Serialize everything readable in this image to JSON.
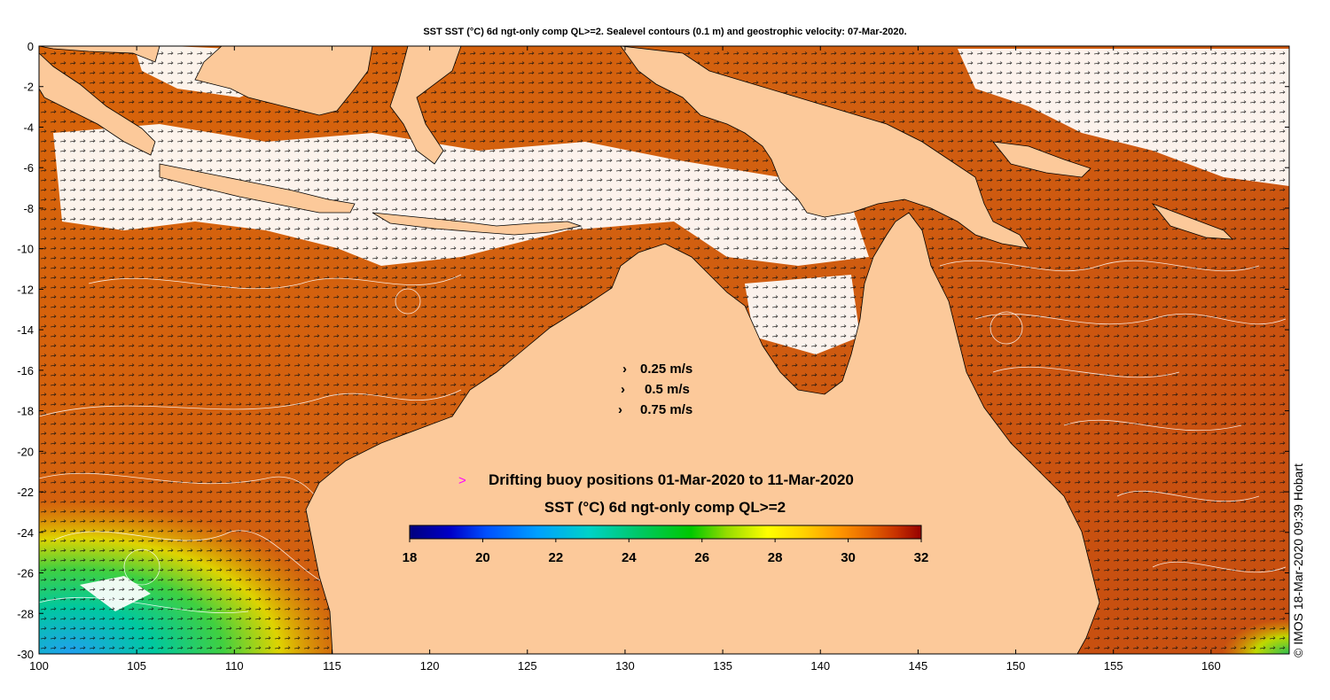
{
  "title": "SST SST (°C) 6d ngt-only comp QL>=2. Sealevel contours (0.1 m) and geostrophic velocity: 07-Mar-2020.",
  "map": {
    "lon_range": [
      100,
      164
    ],
    "lat_range": [
      -30,
      0
    ],
    "x_ticks": [
      100,
      105,
      110,
      115,
      120,
      125,
      130,
      135,
      140,
      145,
      150,
      155,
      160
    ],
    "y_ticks": [
      0,
      -2,
      -4,
      -6,
      -8,
      -10,
      -12,
      -14,
      -16,
      -18,
      -20,
      -22,
      -24,
      -26,
      -28,
      -30
    ],
    "colors": {
      "land": "#fcc99a",
      "frame": "#000000",
      "cloud": "#ffffff"
    }
  },
  "velocity_legend": [
    {
      "symbol": "›",
      "label": "0.25 m/s"
    },
    {
      "symbol": "›",
      "label": "0.5 m/s"
    },
    {
      "symbol": "›",
      "label": "0.75 m/s"
    }
  ],
  "buoy_legend": {
    "symbol": ">",
    "label": "Drifting buoy positions 01-Mar-2020 to 11-Mar-2020",
    "color": "#ff00ff"
  },
  "colorbar": {
    "title": "SST (°C) 6d ngt-only comp QL>=2",
    "min": 18,
    "max": 32,
    "tick_labels": [
      "18",
      "20",
      "22",
      "24",
      "26",
      "28",
      "30",
      "32"
    ],
    "colors": [
      "#00007f",
      "#0000c8",
      "#0050ff",
      "#00a0ff",
      "#00d2c8",
      "#00c864",
      "#00c800",
      "#96dc00",
      "#ffff00",
      "#ffd200",
      "#ff9600",
      "#e66400",
      "#c83200",
      "#960000"
    ]
  },
  "credit": "© IMOS 18-Mar-2020 09:39 Hobart"
}
